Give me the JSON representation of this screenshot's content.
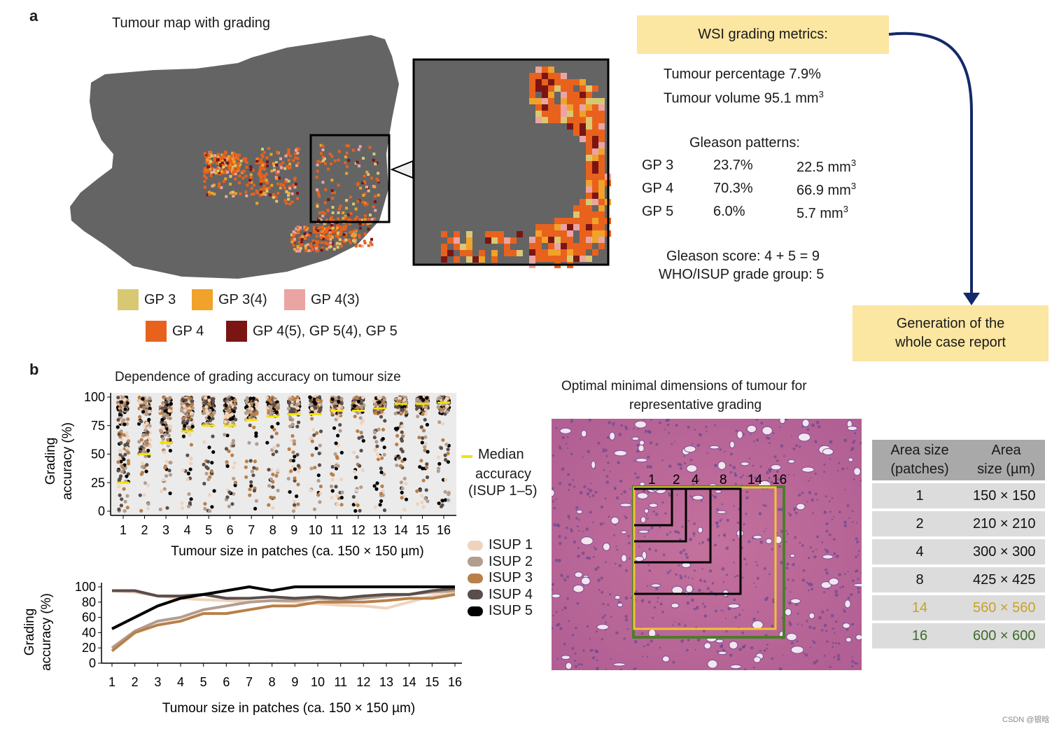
{
  "panel_a": {
    "letter": "a",
    "map_title": "Tumour map with grading",
    "legend": [
      {
        "label": "GP 3",
        "color": "#d9c873"
      },
      {
        "label": "GP 3(4)",
        "color": "#f0a22a"
      },
      {
        "label": "GP 4(3)",
        "color": "#eba4a4"
      },
      {
        "label": "GP 4",
        "color": "#e8621d"
      },
      {
        "label": "GP 4(5), GP 5(4), GP 5",
        "color": "#7a1514"
      }
    ],
    "metrics_box": "WSI grading metrics:",
    "tumour_percentage": "Tumour percentage 7.9%",
    "tumour_volume": "Tumour volume 95.1 mm",
    "tumour_volume_sup": "3",
    "gleason_header": "Gleason patterns:",
    "gleason_rows": [
      {
        "gp": "GP 3",
        "pct": "23.7%",
        "vol": "22.5 mm",
        "sup": "3"
      },
      {
        "gp": "GP 4",
        "pct": "70.3%",
        "vol": "66.9 mm",
        "sup": "3"
      },
      {
        "gp": "GP 5",
        "pct": "6.0%",
        "vol": "5.7 mm",
        "sup": "3"
      }
    ],
    "gleason_score": "Gleason score: 4 + 5 = 9",
    "grade_group": "WHO/ISUP grade group: 5",
    "report_box_line1": "Generation of the",
    "report_box_line2": "whole case report",
    "colors": {
      "tissue": "#646464",
      "arrow": "#14296b",
      "box": "#fbe6a2"
    }
  },
  "panel_b": {
    "letter": "b",
    "scatter_title": "Dependence of grading accuracy on tumour size",
    "median_legend": [
      "Median",
      "accuracy",
      "(ISUP 1–5)"
    ],
    "isup_legend": [
      {
        "label": "ISUP 1",
        "color": "#efd3bd"
      },
      {
        "label": "ISUP 2",
        "color": "#b39d8e"
      },
      {
        "label": "ISUP 3",
        "color": "#b9804a"
      },
      {
        "label": "ISUP 4",
        "color": "#5a4e4a"
      },
      {
        "label": "ISUP 5",
        "color": "#000000"
      }
    ],
    "optimal_title_1": "Optimal minimal dimensions of tumour for",
    "optimal_title_2": "representative grading",
    "square_labels": [
      "1",
      "2",
      "4",
      "8",
      "14",
      "16"
    ],
    "table_headers": [
      "Area size\n(patches)",
      "Area\nsize (µm)"
    ],
    "table_rows": [
      {
        "patches": "1",
        "size": "150 × 150",
        "color": "#111111"
      },
      {
        "patches": "2",
        "size": "210 × 210",
        "color": "#111111"
      },
      {
        "patches": "4",
        "size": "300 × 300",
        "color": "#111111"
      },
      {
        "patches": "8",
        "size": "425 × 425",
        "color": "#111111"
      },
      {
        "patches": "14",
        "size": "560 × 560",
        "color": "#c9a227"
      },
      {
        "patches": "16",
        "size": "600 × 600",
        "color": "#3f6b2a"
      }
    ],
    "watermark": "CSDN @银晗"
  },
  "chart_data": [
    {
      "type": "scatter",
      "title": "Dependence of grading accuracy on tumour size",
      "xlabel": "Tumour size in patches (ca. 150 × 150 µm)",
      "ylabel": "Grading accuracy (%)",
      "categories": [
        "1",
        "2",
        "3",
        "4",
        "5",
        "6",
        "7",
        "8",
        "9",
        "10",
        "11",
        "12",
        "13",
        "14",
        "15",
        "16"
      ],
      "yticks": [
        "0",
        "25",
        "50",
        "75",
        "100"
      ],
      "ylim": [
        0,
        100
      ],
      "median": [
        25,
        50,
        60,
        70,
        75,
        75,
        80,
        83,
        85,
        85,
        88,
        88,
        90,
        94,
        94,
        95
      ],
      "median_color": "#f2e400",
      "grid": false
    },
    {
      "type": "line",
      "xlabel": "Tumour size in patches (ca. 150 × 150 µm)",
      "ylabel": "Grading accuracy (%)",
      "x": [
        1,
        2,
        3,
        4,
        5,
        6,
        7,
        8,
        9,
        10,
        11,
        12,
        13,
        14,
        15,
        16
      ],
      "yticks": [
        "0",
        "20",
        "40",
        "60",
        "80",
        "100"
      ],
      "ylim": [
        0,
        100
      ],
      "series": [
        {
          "name": "ISUP 1",
          "color": "#efd3bd",
          "values": [
            95,
            93,
            88,
            85,
            83,
            82,
            80,
            82,
            80,
            78,
            76,
            75,
            72,
            80,
            88,
            92
          ]
        },
        {
          "name": "ISUP 2",
          "color": "#b39d8e",
          "values": [
            20,
            42,
            55,
            60,
            70,
            75,
            80,
            82,
            82,
            85,
            83,
            85,
            88,
            90,
            93,
            95
          ]
        },
        {
          "name": "ISUP 3",
          "color": "#b9804a",
          "values": [
            16,
            40,
            50,
            55,
            65,
            65,
            70,
            75,
            75,
            80,
            80,
            80,
            82,
            85,
            85,
            90
          ]
        },
        {
          "name": "ISUP 4",
          "color": "#5a4e4a",
          "values": [
            95,
            95,
            88,
            88,
            90,
            85,
            85,
            87,
            85,
            87,
            85,
            88,
            90,
            90,
            95,
            98
          ]
        },
        {
          "name": "ISUP 5",
          "color": "#000000",
          "values": [
            45,
            60,
            75,
            85,
            90,
            95,
            100,
            95,
            100,
            100,
            100,
            100,
            100,
            100,
            100,
            100
          ]
        }
      ]
    }
  ]
}
